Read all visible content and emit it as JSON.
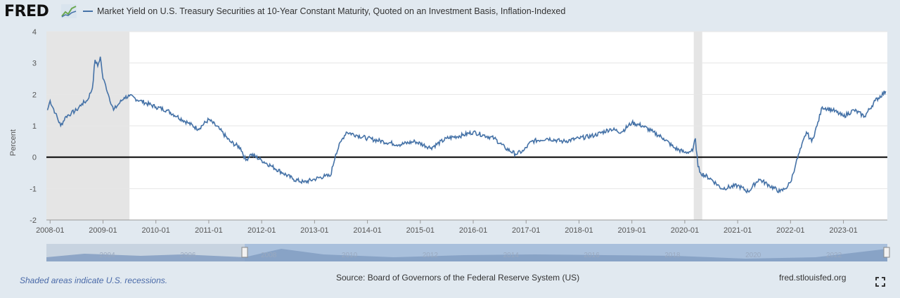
{
  "header": {
    "logo_text": "FRED",
    "logo_icon": "fred-graph-icon"
  },
  "chart_data": {
    "type": "line",
    "title": "Market Yield on U.S. Treasury Securities at 10-Year Constant Maturity, Quoted on an Investment Basis, Inflation-Indexed",
    "ylabel": "Percent",
    "xlabel": "",
    "ylim": [
      -2,
      4
    ],
    "xlim": [
      2007.93,
      2023.83
    ],
    "yticks": [
      "4",
      "3",
      "2",
      "1",
      "0",
      "-1",
      "-2"
    ],
    "xticks": [
      "2008-01",
      "2009-01",
      "2010-01",
      "2011-01",
      "2012-01",
      "2013-01",
      "2014-01",
      "2015-01",
      "2016-01",
      "2017-01",
      "2018-01",
      "2019-01",
      "2020-01",
      "2021-01",
      "2022-01",
      "2023-01"
    ],
    "navigator_ticks": [
      "2004",
      "2006",
      "2008",
      "2010",
      "2012",
      "2014",
      "2016",
      "2018",
      "2020",
      "2022"
    ],
    "recessions": [
      [
        2007.93,
        2009.5
      ],
      [
        2020.17,
        2020.33
      ]
    ],
    "series": [
      {
        "name": "Market Yield on U.S. Treasury Securities at 10-Year Constant Maturity, Quoted on an Investment Basis, Inflation-Indexed",
        "color": "#4572a7",
        "x": [
          2007.95,
          2008.0,
          2008.1,
          2008.2,
          2008.3,
          2008.4,
          2008.5,
          2008.6,
          2008.7,
          2008.8,
          2008.85,
          2008.9,
          2008.95,
          2009.0,
          2009.05,
          2009.1,
          2009.2,
          2009.3,
          2009.4,
          2009.5,
          2009.7,
          2010.0,
          2010.2,
          2010.4,
          2010.6,
          2010.8,
          2011.0,
          2011.2,
          2011.4,
          2011.6,
          2011.7,
          2011.8,
          2012.0,
          2012.2,
          2012.4,
          2012.6,
          2012.8,
          2013.0,
          2013.2,
          2013.3,
          2013.4,
          2013.5,
          2013.6,
          2013.8,
          2014.0,
          2014.3,
          2014.6,
          2014.9,
          2015.2,
          2015.5,
          2015.8,
          2016.0,
          2016.2,
          2016.4,
          2016.6,
          2016.8,
          2016.95,
          2017.1,
          2017.4,
          2017.7,
          2018.0,
          2018.3,
          2018.6,
          2018.8,
          2019.0,
          2019.2,
          2019.4,
          2019.6,
          2019.8,
          2020.0,
          2020.15,
          2020.2,
          2020.25,
          2020.3,
          2020.5,
          2020.7,
          2021.0,
          2021.2,
          2021.4,
          2021.6,
          2021.8,
          2021.9,
          2022.0,
          2022.1,
          2022.2,
          2022.3,
          2022.4,
          2022.5,
          2022.6,
          2022.8,
          2023.0,
          2023.2,
          2023.4,
          2023.6,
          2023.8
        ],
        "y": [
          1.5,
          1.8,
          1.4,
          1.0,
          1.3,
          1.4,
          1.5,
          1.7,
          1.8,
          2.2,
          3.1,
          2.9,
          3.2,
          2.5,
          2.3,
          2.0,
          1.5,
          1.7,
          1.9,
          1.95,
          1.8,
          1.6,
          1.5,
          1.3,
          1.1,
          0.9,
          1.2,
          0.9,
          0.5,
          0.3,
          -0.1,
          0.1,
          -0.1,
          -0.3,
          -0.5,
          -0.7,
          -0.8,
          -0.7,
          -0.6,
          -0.6,
          0.1,
          0.5,
          0.8,
          0.7,
          0.6,
          0.5,
          0.4,
          0.5,
          0.3,
          0.6,
          0.7,
          0.8,
          0.7,
          0.6,
          0.3,
          0.1,
          0.2,
          0.5,
          0.6,
          0.5,
          0.6,
          0.7,
          0.9,
          0.8,
          1.1,
          1.0,
          0.8,
          0.6,
          0.3,
          0.15,
          0.2,
          0.6,
          -0.3,
          -0.5,
          -0.7,
          -1.0,
          -0.9,
          -1.1,
          -0.7,
          -0.9,
          -1.1,
          -1.0,
          -0.8,
          -0.2,
          0.3,
          0.8,
          0.5,
          1.0,
          1.6,
          1.5,
          1.3,
          1.5,
          1.3,
          1.8,
          2.1
        ]
      }
    ]
  },
  "footer": {
    "note": "Shaded areas indicate U.S. recessions.",
    "source": "Source: Board of Governors of the Federal Reserve System (US)",
    "site": "fred.stlouisfed.org",
    "fullscreen_icon": "fullscreen-icon"
  }
}
